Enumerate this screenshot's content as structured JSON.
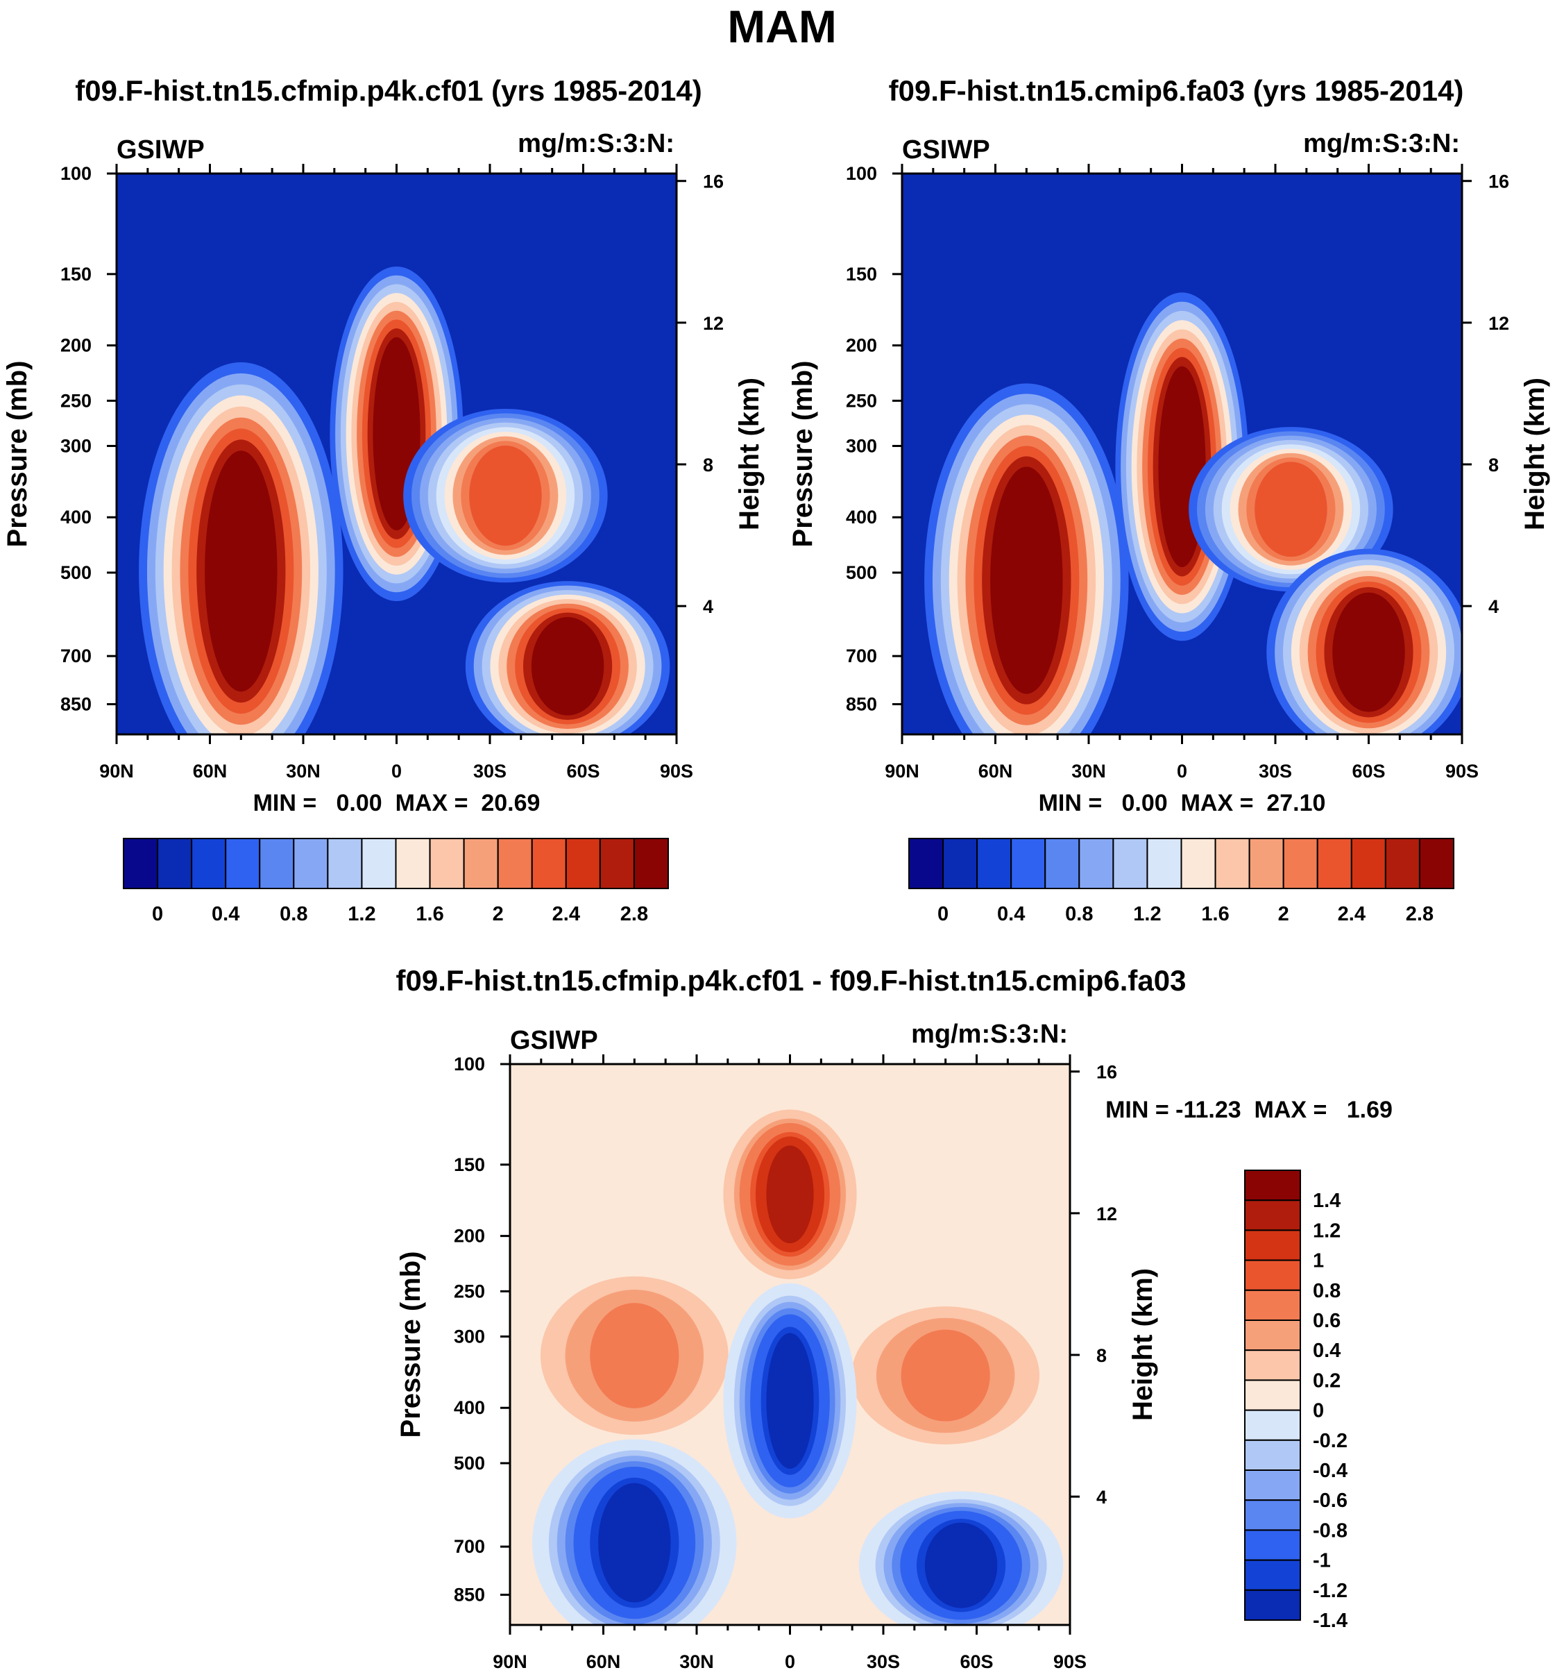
{
  "main_title": "MAM",
  "chart_data": [
    {
      "type": "heatmap",
      "title": "f09.F-hist.tn15.cfmip.p4k.cf01 (yrs 1985-2014)",
      "left_label": "GSIWP",
      "right_label": "mg/m:S:3:N:",
      "xlabel": "",
      "ylabel": "Pressure (mb)",
      "y2label": "Height (km)",
      "x_ticks": [
        "90N",
        "60N",
        "30N",
        "0",
        "30S",
        "60S",
        "90S"
      ],
      "y_ticks": [
        "100",
        "150",
        "200",
        "250",
        "300",
        "400",
        "500",
        "700",
        "850"
      ],
      "y2_ticks": [
        "16",
        "12",
        "8",
        "4"
      ],
      "ylim": [
        1000,
        100
      ],
      "min_text": "MIN =   0.00  MAX =  20.69",
      "min": 0.0,
      "max": 20.69,
      "levels": [
        "0",
        "0.4",
        "0.8",
        "1.2",
        "1.6",
        "2",
        "2.4",
        "2.8"
      ],
      "features": [
        {
          "name": "nh-storm-track",
          "lat": 50,
          "p_top": 260,
          "p_bottom": 950,
          "value": 2.8
        },
        {
          "name": "tropical-deep-convection",
          "lat": 0,
          "p_top": 170,
          "p_bottom": 480,
          "value": 2.8
        },
        {
          "name": "sh-upper-cloud",
          "lat": -35,
          "p_top": 280,
          "p_bottom": 480,
          "value": 2.2
        },
        {
          "name": "sh-storm-track",
          "lat": -55,
          "p_top": 560,
          "p_bottom": 950,
          "value": 2.8
        }
      ]
    },
    {
      "type": "heatmap",
      "title": "f09.F-hist.tn15.cmip6.fa03 (yrs 1985-2014)",
      "left_label": "GSIWP",
      "right_label": "mg/m:S:3:N:",
      "xlabel": "",
      "ylabel": "Pressure (mb)",
      "y2label": "Height (km)",
      "x_ticks": [
        "90N",
        "60N",
        "30N",
        "0",
        "30S",
        "60S",
        "90S"
      ],
      "y_ticks": [
        "100",
        "150",
        "200",
        "250",
        "300",
        "400",
        "500",
        "700",
        "850"
      ],
      "y2_ticks": [
        "16",
        "12",
        "8",
        "4"
      ],
      "ylim": [
        1000,
        100
      ],
      "min_text": "MIN =   0.00  MAX =  27.10",
      "min": 0.0,
      "max": 27.1,
      "levels": [
        "0",
        "0.4",
        "0.8",
        "1.2",
        "1.6",
        "2",
        "2.4",
        "2.8"
      ],
      "features": [
        {
          "name": "nh-storm-track",
          "lat": 50,
          "p_top": 280,
          "p_bottom": 950,
          "value": 2.8
        },
        {
          "name": "tropical-deep-convection",
          "lat": 0,
          "p_top": 190,
          "p_bottom": 560,
          "value": 2.8
        },
        {
          "name": "sh-upper-cloud",
          "lat": -35,
          "p_top": 300,
          "p_bottom": 500,
          "value": 2.2
        },
        {
          "name": "sh-storm-track",
          "lat": -60,
          "p_top": 500,
          "p_bottom": 950,
          "value": 2.8
        }
      ]
    },
    {
      "type": "heatmap",
      "title": "f09.F-hist.tn15.cfmip.p4k.cf01 - f09.F-hist.tn15.cmip6.fa03",
      "left_label": "GSIWP",
      "right_label": "mg/m:S:3:N:",
      "xlabel": "",
      "ylabel": "Pressure (mb)",
      "y2label": "Height (km)",
      "x_ticks": [
        "90N",
        "60N",
        "30N",
        "0",
        "30S",
        "60S",
        "90S"
      ],
      "y_ticks": [
        "100",
        "150",
        "200",
        "250",
        "300",
        "400",
        "500",
        "700",
        "850"
      ],
      "y2_ticks": [
        "16",
        "12",
        "8",
        "4"
      ],
      "ylim": [
        1000,
        100
      ],
      "min_text": "MIN = -11.23  MAX =   1.69",
      "min": -11.23,
      "max": 1.69,
      "levels": [
        "1.4",
        "1.2",
        "1",
        "0.8",
        "0.6",
        "0.4",
        "0.2",
        "0",
        "-0.2",
        "-0.4",
        "-0.6",
        "-0.8",
        "-1",
        "-1.2",
        "-1.4"
      ],
      "features": [
        {
          "name": "nh-upper-increase",
          "lat": 50,
          "p_top": 250,
          "p_bottom": 420,
          "value": 0.6
        },
        {
          "name": "tropical-top-increase",
          "lat": 0,
          "p_top": 130,
          "p_bottom": 220,
          "value": 1.2
        },
        {
          "name": "sh-upper-increase",
          "lat": -50,
          "p_top": 280,
          "p_bottom": 440,
          "value": 0.6
        },
        {
          "name": "nh-lower-decrease",
          "lat": 50,
          "p_top": 500,
          "p_bottom": 950,
          "value": -1.4
        },
        {
          "name": "tropical-decrease",
          "lat": 0,
          "p_top": 270,
          "p_bottom": 560,
          "value": -1.4
        },
        {
          "name": "sh-lower-decrease",
          "lat": -55,
          "p_top": 600,
          "p_bottom": 950,
          "value": -1.4
        }
      ]
    }
  ],
  "palettes": {
    "absolute": [
      "#08088c",
      "#0a2bb4",
      "#1342d6",
      "#2f62f0",
      "#5a86f2",
      "#86a8f4",
      "#b0c8f6",
      "#d8e6fa",
      "#fce8d8",
      "#fbc6aa",
      "#f6a07a",
      "#f27b52",
      "#ea552e",
      "#d43414",
      "#b01d0c",
      "#8a0404"
    ],
    "difference": [
      "#08088c",
      "#0a2bb4",
      "#1342d6",
      "#2f62f0",
      "#5a86f2",
      "#86a8f4",
      "#b0c8f6",
      "#d8e6fa",
      "#fce8d8",
      "#fbc6aa",
      "#f6a07a",
      "#f27b52",
      "#ea552e",
      "#d43414",
      "#b01d0c",
      "#8a0404"
    ]
  }
}
